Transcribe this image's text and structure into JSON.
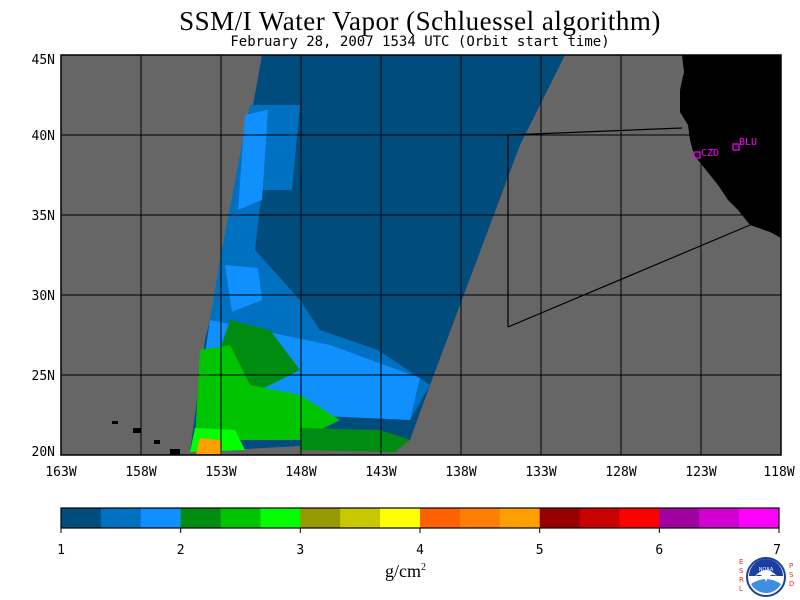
{
  "title": "SSM/I Water Vapor (Schluessel algorithm)",
  "subtitle": "February 28, 2007  1534 UTC  (Orbit start time)",
  "map": {
    "lon_ticks": [
      "163W",
      "158W",
      "153W",
      "148W",
      "143W",
      "138W",
      "133W",
      "128W",
      "123W",
      "118W"
    ],
    "lat_ticks": [
      "45N",
      "40N",
      "35N",
      "30N",
      "25N",
      "20N"
    ],
    "stations": [
      {
        "id": "czd",
        "label": "CZD"
      },
      {
        "id": "blu",
        "label": "BLU"
      }
    ]
  },
  "colorbar": {
    "colors": [
      "#004c7c",
      "#0070c0",
      "#1090ff",
      "#008c10",
      "#00c400",
      "#00ff00",
      "#989800",
      "#c8c800",
      "#ffff00",
      "#ff6000",
      "#ff8000",
      "#ffa000",
      "#980000",
      "#c80000",
      "#ff0000",
      "#a000a0",
      "#d000d0",
      "#ff00ff"
    ],
    "tick_labels": [
      "1",
      "2",
      "3",
      "4",
      "5",
      "6",
      "7"
    ],
    "units_main": "g/cm",
    "units_sup": "2"
  },
  "logo": {
    "left_text": "ESRL",
    "right_text": "PSD",
    "noaa_text": "NOAA"
  }
}
